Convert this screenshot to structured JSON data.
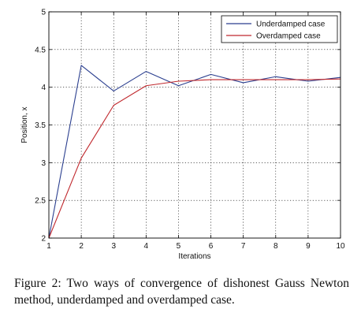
{
  "chart_data": {
    "type": "line",
    "xlabel": "Iterations",
    "ylabel": "Position, x",
    "xlim": [
      1,
      10
    ],
    "ylim": [
      2,
      5
    ],
    "xticks": [
      "1",
      "2",
      "3",
      "4",
      "5",
      "6",
      "7",
      "8",
      "9",
      "10"
    ],
    "yticks": [
      "2",
      "2.5",
      "3",
      "3.5",
      "4",
      "4.5",
      "5"
    ],
    "grid": true,
    "legend": "top-right",
    "x": [
      1,
      2,
      3,
      4,
      5,
      6,
      7,
      8,
      9,
      10
    ],
    "series": [
      {
        "name": "Underdamped case",
        "color": "#2b3f8f",
        "values": [
          2.0,
          4.29,
          3.95,
          4.21,
          4.02,
          4.17,
          4.06,
          4.14,
          4.08,
          4.13
        ]
      },
      {
        "name": "Overdamped case",
        "color": "#c0282d",
        "values": [
          2.0,
          3.06,
          3.76,
          4.02,
          4.08,
          4.1,
          4.1,
          4.1,
          4.1,
          4.11
        ]
      }
    ]
  },
  "caption": "Figure 2:  Two ways of convergence of dishonest Gauss Newton method, underdamped and overdamped case."
}
